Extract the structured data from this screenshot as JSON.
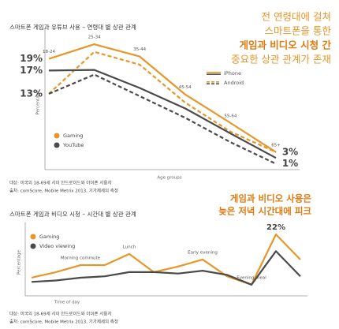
{
  "chart_data": [
    {
      "type": "line",
      "title": "스마트폰 게임과 유튜브 사용 – 연령대 별 상관 관계",
      "annotation": [
        "전 연령대에 걸쳐",
        "스마트폰을 통한",
        "게임과 비디오 시청 간",
        "중요한 상관 관계가 존재"
      ],
      "x_label": "Age groups",
      "y_label": "Percentage",
      "categories": [
        "18-24",
        "25-34",
        "35-44",
        "45-54",
        "55-64",
        "65+"
      ],
      "ylim": [
        0,
        23
      ],
      "devices": [
        {
          "name": "iPhone",
          "dash": false
        },
        {
          "name": "Android",
          "dash": true
        }
      ],
      "series": [
        {
          "name": "Gaming",
          "color": "#e8962a",
          "lines": [
            {
              "values": [
                19,
                21.5,
                19.4,
                12.9,
                8,
                3
              ],
              "value_labels": [
                "19%",
                null,
                null,
                null,
                null,
                "3%"
              ]
            },
            {
              "values": [
                13,
                20.2,
                18,
                11.5,
                6.5,
                3
              ],
              "value_labels": [
                "13%",
                null,
                null,
                null,
                null,
                null
              ]
            }
          ]
        },
        {
          "name": "YouTube",
          "color": "#4a4a4a",
          "lines": [
            {
              "values": [
                17,
                17.1,
                14,
                10.5,
                6.2,
                2
              ],
              "value_labels": [
                "17%",
                null,
                null,
                null,
                null,
                null
              ]
            },
            {
              "values": [
                13,
                16.3,
                12.6,
                8.9,
                4.7,
                1
              ],
              "value_labels": [
                null,
                null,
                null,
                null,
                null,
                "1%"
              ]
            }
          ]
        }
      ],
      "notes": [
        "대상: 미국의 18-69세 사이 안드로이드와 아이폰 사용자",
        "출처: comScore, Mobile Metrix 2013, 기가제세의 측정"
      ]
    },
    {
      "type": "line",
      "title": "스마트폰 게임과 비디오 시청 – 시간대 별 상관 관계",
      "annotation": [
        "게임과 비디오 사용은",
        "늦은 저녁 시간대에 피크"
      ],
      "x_label": "Time of day",
      "y_label": "Percentage",
      "categories": [
        null,
        null,
        "Morning commute",
        null,
        "Lunch",
        null,
        null,
        "Early evening",
        null,
        "Evening meal",
        null,
        null
      ],
      "ylim": [
        0,
        24
      ],
      "series": [
        {
          "name": "Gaming",
          "color": "#e8962a",
          "values": [
            6.5,
            8.5,
            11,
            11,
            15,
            8.5,
            10.5,
            13,
            7,
            4,
            22,
            13
          ],
          "value_labels": [
            null,
            null,
            null,
            null,
            null,
            null,
            null,
            null,
            null,
            null,
            "22%",
            null
          ]
        },
        {
          "name": "Video viewing",
          "color": "#4a4a4a",
          "values": [
            5,
            5.5,
            6.5,
            7,
            8.5,
            8.5,
            8,
            9,
            7.5,
            4,
            16,
            7
          ]
        }
      ],
      "notes": [
        "대상: 미국의 18-69세 사이 안드로이드와 아이폰 사용자",
        "출처: comScore, Mobile Metrix 2013, 기가제세의 측정"
      ]
    }
  ]
}
